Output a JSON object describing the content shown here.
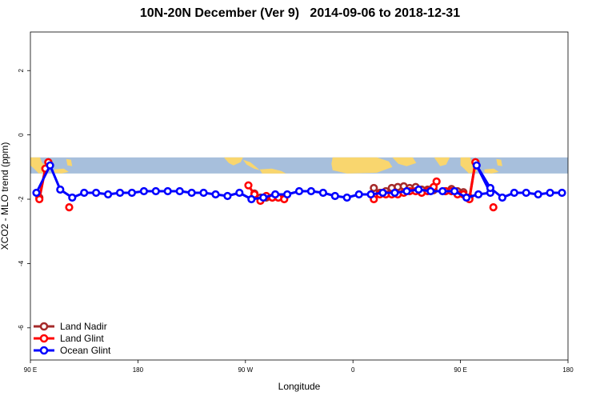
{
  "colors": {
    "land_nadir": "#a52a2a",
    "land_glint": "#ff0000",
    "ocean_glint": "#0000ff",
    "map_ocean": "#a7bfdc",
    "map_land": "#f9d66e"
  },
  "chart_data": {
    "type": "line",
    "title": "10N-20N December (Ver 9)   2014-09-06 to 2018-12-31",
    "xlabel": "Longitude",
    "ylabel": "XCO2 - MLO trend (ppm)",
    "xlim": [
      90,
      540
    ],
    "ylim": [
      -7.0,
      3.2
    ],
    "x_ticks": [
      {
        "value": 90,
        "label": "90 E"
      },
      {
        "value": 180,
        "label": "180"
      },
      {
        "value": 270,
        "label": "90 W"
      },
      {
        "value": 360,
        "label": "0"
      },
      {
        "value": 450,
        "label": "90 E"
      },
      {
        "value": 540,
        "label": "180"
      }
    ],
    "y_ticks": [
      {
        "value": 2,
        "label": "2"
      },
      {
        "value": 0,
        "label": "0"
      },
      {
        "value": -2,
        "label": "-2"
      },
      {
        "value": -4,
        "label": "-4"
      },
      {
        "value": -6,
        "label": "-6"
      }
    ],
    "map_band": {
      "y_top": -0.7,
      "y_bottom": -1.2
    },
    "legend_position": "bottom-left",
    "legend": [
      "Land Nadir",
      "Land Glint",
      "Ocean Glint"
    ],
    "series": [
      {
        "name": "Land Nadir",
        "color": "#a52a2a",
        "segments": [
          [
            [
              97.5,
              -1.95
            ],
            [
              102.5,
              -1.05
            ],
            [
              105,
              -0.85
            ]
          ],
          [
            [
              277.5,
              -1.82
            ],
            [
              282.5,
              -1.95
            ],
            [
              287.5,
              -1.95
            ],
            [
              292.5,
              -1.95
            ],
            [
              297.5,
              -1.95
            ],
            [
              302.5,
              -1.95
            ]
          ],
          [
            [
              377.5,
              -1.65
            ],
            [
              382.5,
              -1.8
            ],
            [
              387.5,
              -1.75
            ],
            [
              392.5,
              -1.65
            ],
            [
              397.5,
              -1.62
            ],
            [
              402.5,
              -1.6
            ],
            [
              407.5,
              -1.65
            ],
            [
              412.5,
              -1.62
            ],
            [
              417.5,
              -1.7
            ],
            [
              422.5,
              -1.7
            ],
            [
              427.5,
              -1.72
            ]
          ],
          [
            [
              437.5,
              -1.75
            ],
            [
              442.5,
              -1.68
            ],
            [
              447.5,
              -1.75
            ],
            [
              452.5,
              -1.78
            ],
            [
              457.5,
              -1.95
            ],
            [
              462.5,
              -0.85
            ]
          ]
        ]
      },
      {
        "name": "Land Glint",
        "color": "#ff0000",
        "segments": [
          [
            [
              97.5,
              -2.0
            ],
            [
              102.5,
              -1.05
            ],
            [
              105,
              -0.85
            ]
          ],
          [
            [
              122.5,
              -2.25
            ]
          ],
          [
            [
              272.5,
              -1.57
            ],
            [
              277.5,
              -1.85
            ],
            [
              282.5,
              -2.05
            ],
            [
              287.5,
              -1.9
            ],
            [
              292.5,
              -1.95
            ],
            [
              297.5,
              -1.95
            ],
            [
              302.5,
              -2.0
            ]
          ],
          [
            [
              377.5,
              -2.0
            ],
            [
              382.5,
              -1.85
            ],
            [
              387.5,
              -1.85
            ],
            [
              392.5,
              -1.85
            ],
            [
              397.5,
              -1.85
            ],
            [
              402.5,
              -1.8
            ],
            [
              407.5,
              -1.75
            ],
            [
              412.5,
              -1.75
            ],
            [
              417.5,
              -1.8
            ],
            [
              422.5,
              -1.75
            ],
            [
              427.5,
              -1.62
            ],
            [
              430,
              -1.45
            ]
          ],
          [
            [
              437.5,
              -1.75
            ],
            [
              442.5,
              -1.75
            ],
            [
              447.5,
              -1.85
            ],
            [
              452.5,
              -1.85
            ],
            [
              457.5,
              -2.0
            ],
            [
              462.5,
              -0.85
            ]
          ],
          [
            [
              477.5,
              -2.25
            ]
          ]
        ]
      },
      {
        "name": "Ocean Glint",
        "color": "#0000ff",
        "segments": [
          [
            [
              95,
              -1.8
            ],
            [
              106.5,
              -0.95
            ],
            [
              115,
              -1.7
            ],
            [
              125,
              -1.95
            ],
            [
              135,
              -1.8
            ],
            [
              145,
              -1.8
            ],
            [
              155,
              -1.85
            ],
            [
              165,
              -1.8
            ],
            [
              175,
              -1.8
            ],
            [
              185,
              -1.75
            ],
            [
              195,
              -1.75
            ],
            [
              205,
              -1.75
            ],
            [
              215,
              -1.75
            ],
            [
              225,
              -1.8
            ],
            [
              235,
              -1.8
            ],
            [
              245,
              -1.85
            ],
            [
              255,
              -1.9
            ],
            [
              265,
              -1.8
            ],
            [
              275,
              -2.0
            ],
            [
              285,
              -1.95
            ],
            [
              295,
              -1.85
            ],
            [
              305,
              -1.85
            ],
            [
              315,
              -1.75
            ],
            [
              325,
              -1.75
            ],
            [
              335,
              -1.8
            ],
            [
              345,
              -1.9
            ],
            [
              355,
              -1.95
            ],
            [
              365,
              -1.85
            ],
            [
              375,
              -1.85
            ],
            [
              385,
              -1.8
            ],
            [
              395,
              -1.8
            ],
            [
              405,
              -1.75
            ],
            [
              415,
              -1.7
            ],
            [
              425,
              -1.75
            ],
            [
              435,
              -1.75
            ],
            [
              445,
              -1.75
            ],
            [
              455,
              -1.95
            ],
            [
              465,
              -1.85
            ],
            [
              475,
              -1.8
            ],
            [
              463.5,
              -0.95
            ],
            [
              475,
              -1.65
            ],
            [
              485,
              -1.95
            ],
            [
              495,
              -1.8
            ],
            [
              505,
              -1.8
            ],
            [
              515,
              -1.85
            ],
            [
              525,
              -1.8
            ],
            [
              535,
              -1.8
            ]
          ]
        ]
      }
    ]
  }
}
